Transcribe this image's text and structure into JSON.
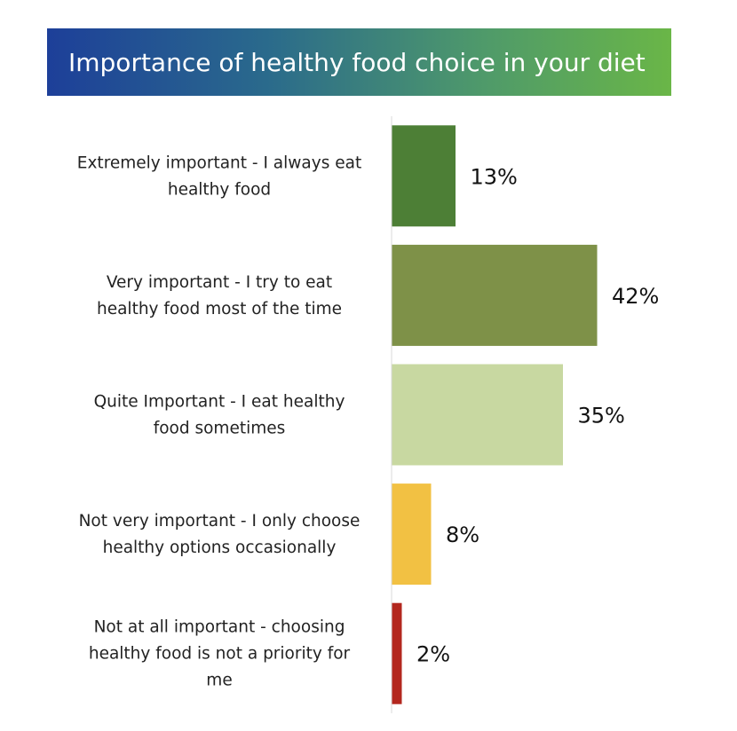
{
  "header": {
    "title": "Importance of healthy food choice in your diet"
  },
  "chart_data": {
    "type": "bar",
    "orientation": "horizontal",
    "title": "Importance of healthy food choice in your diet",
    "categories": [
      "Extremely important - I always eat healthy food",
      "Very important - I try to eat healthy food most of the time",
      "Quite Important - I eat healthy food sometimes",
      "Not very important - I only choose healthy options occasionally",
      "Not at all important - choosing healthy food is not a priority for me"
    ],
    "category_lines": [
      [
        "Extremely important - I always eat",
        "healthy food"
      ],
      [
        "Very important - I try to eat",
        "healthy food most of the time"
      ],
      [
        "Quite Important - I eat healthy",
        "food sometimes"
      ],
      [
        "Not very important - I only choose",
        "healthy options occasionally"
      ],
      [
        "Not at all important - choosing",
        "healthy food is not a priority for",
        "me"
      ]
    ],
    "values": [
      13,
      42,
      35,
      8,
      2
    ],
    "value_labels": [
      "13%",
      "42%",
      "35%",
      "8%",
      "2%"
    ],
    "colors": [
      "#4d7f36",
      "#7e9148",
      "#c8d8a1",
      "#f2c143",
      "#b3271e"
    ],
    "xlim": [
      0,
      42
    ],
    "grid": false,
    "legend": "none",
    "xlabel": "",
    "ylabel": ""
  }
}
